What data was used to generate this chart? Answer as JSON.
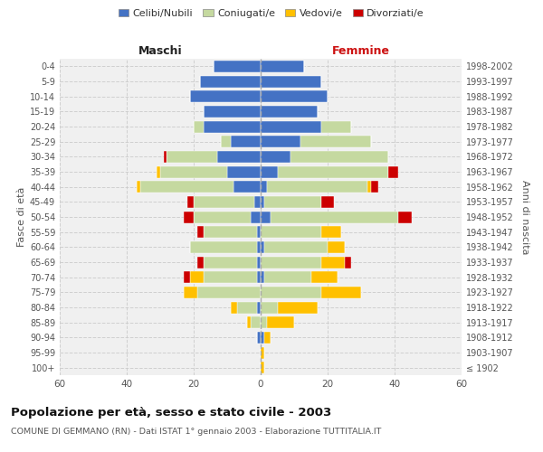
{
  "age_groups": [
    "100+",
    "95-99",
    "90-94",
    "85-89",
    "80-84",
    "75-79",
    "70-74",
    "65-69",
    "60-64",
    "55-59",
    "50-54",
    "45-49",
    "40-44",
    "35-39",
    "30-34",
    "25-29",
    "20-24",
    "15-19",
    "10-14",
    "5-9",
    "0-4"
  ],
  "birth_years": [
    "≤ 1902",
    "1903-1907",
    "1908-1912",
    "1913-1917",
    "1918-1922",
    "1923-1927",
    "1928-1932",
    "1933-1937",
    "1938-1942",
    "1943-1947",
    "1948-1952",
    "1953-1957",
    "1958-1962",
    "1963-1967",
    "1968-1972",
    "1973-1977",
    "1978-1982",
    "1983-1987",
    "1988-1992",
    "1993-1997",
    "1998-2002"
  ],
  "colors": {
    "celibe": "#4472c4",
    "coniugato": "#c5d9a0",
    "vedovo": "#ffc000",
    "divorziato": "#cc0000"
  },
  "males": {
    "celibe": [
      0,
      0,
      1,
      0,
      1,
      0,
      1,
      1,
      1,
      1,
      3,
      2,
      8,
      10,
      13,
      9,
      17,
      17,
      21,
      18,
      14
    ],
    "coniugato": [
      0,
      0,
      0,
      3,
      6,
      19,
      16,
      16,
      20,
      16,
      17,
      18,
      28,
      20,
      15,
      3,
      3,
      0,
      0,
      0,
      0
    ],
    "vedovo": [
      0,
      0,
      0,
      1,
      2,
      4,
      4,
      0,
      0,
      0,
      0,
      0,
      1,
      1,
      0,
      0,
      0,
      0,
      0,
      0,
      0
    ],
    "divorziato": [
      0,
      0,
      0,
      0,
      0,
      0,
      2,
      2,
      0,
      2,
      3,
      2,
      0,
      0,
      1,
      0,
      0,
      0,
      0,
      0,
      0
    ]
  },
  "females": {
    "celibe": [
      0,
      0,
      1,
      0,
      0,
      0,
      1,
      0,
      1,
      0,
      3,
      1,
      2,
      5,
      9,
      12,
      18,
      17,
      20,
      18,
      13
    ],
    "coniugato": [
      0,
      0,
      0,
      2,
      5,
      18,
      14,
      18,
      19,
      18,
      38,
      17,
      30,
      33,
      29,
      21,
      9,
      0,
      0,
      0,
      0
    ],
    "vedovo": [
      1,
      1,
      2,
      8,
      12,
      12,
      8,
      7,
      5,
      6,
      0,
      0,
      1,
      0,
      0,
      0,
      0,
      0,
      0,
      0,
      0
    ],
    "divorziato": [
      0,
      0,
      0,
      0,
      0,
      0,
      0,
      2,
      0,
      0,
      4,
      4,
      2,
      3,
      0,
      0,
      0,
      0,
      0,
      0,
      0
    ]
  },
  "xlim": 60,
  "title": "Popolazione per età, sesso e stato civile - 2003",
  "subtitle": "COMUNE DI GEMMANO (RN) - Dati ISTAT 1° gennaio 2003 - Elaborazione TUTTITALIA.IT",
  "ylabel_left": "Fasce di età",
  "ylabel_right": "Anni di nascita",
  "xlabel_left": "Maschi",
  "xlabel_right": "Femmine",
  "background_color": "#ffffff",
  "grid_color": "#cccccc",
  "ax_bg_color": "#f0f0f0"
}
